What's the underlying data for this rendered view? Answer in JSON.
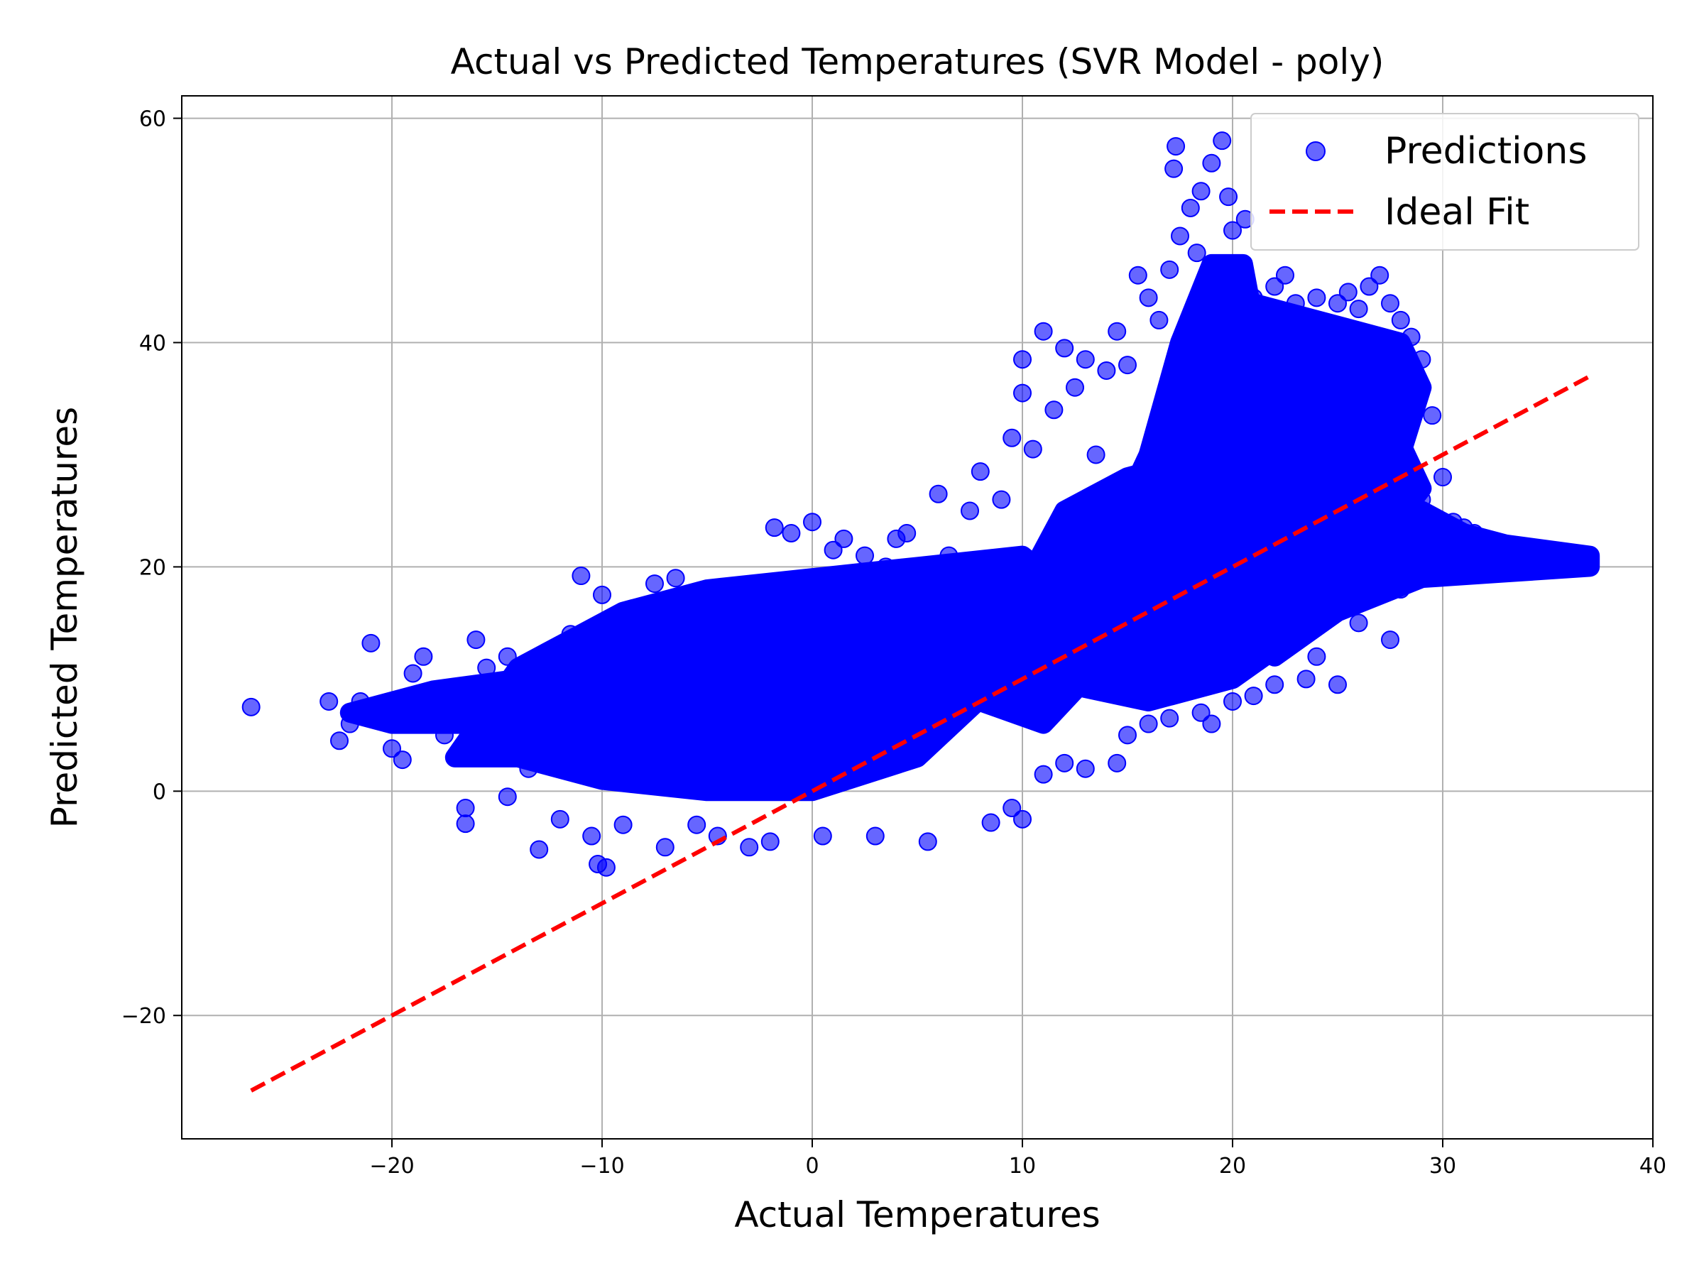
{
  "chart_data": {
    "type": "scatter",
    "title": "Actual vs Predicted Temperatures (SVR Model - poly)",
    "xlabel": "Actual Temperatures",
    "ylabel": "Predicted Temperatures",
    "xlim": [
      -30,
      40
    ],
    "ylim": [
      -31,
      62
    ],
    "xticks": [
      -20,
      -10,
      0,
      10,
      20,
      30,
      40
    ],
    "yticks": [
      -20,
      0,
      20,
      40,
      60
    ],
    "xtick_labels": [
      "−20",
      "−10",
      "0",
      "10",
      "20",
      "30",
      "40"
    ],
    "ytick_labels": [
      "−20",
      "0",
      "20",
      "40",
      "60"
    ],
    "grid": true,
    "legend_position": "top-right",
    "colors": {
      "predictions": "#0000ff",
      "ideal_fit": "#ff0000",
      "grid": "#b0b0b0"
    },
    "series": [
      {
        "name": "Predictions",
        "kind": "scatter",
        "alpha": 0.6,
        "points": [
          [
            -26.7,
            7.5
          ],
          [
            -23.0,
            8.0
          ],
          [
            -22.5,
            4.5
          ],
          [
            -22.0,
            6.0
          ],
          [
            -21.5,
            8.0
          ],
          [
            -21.0,
            13.2
          ],
          [
            -20.5,
            6.5
          ],
          [
            -20.0,
            3.8
          ],
          [
            -19.5,
            2.8
          ],
          [
            -19.0,
            10.5
          ],
          [
            -18.5,
            12.0
          ],
          [
            -18.0,
            7.0
          ],
          [
            -17.5,
            5.0
          ],
          [
            -16.5,
            -1.5
          ],
          [
            -16.5,
            -2.9
          ],
          [
            -16.0,
            13.5
          ],
          [
            -15.5,
            11.0
          ],
          [
            -15.0,
            9.0
          ],
          [
            -14.5,
            12.0
          ],
          [
            -14.0,
            6.5
          ],
          [
            -14.5,
            -0.5
          ],
          [
            -13.5,
            2.0
          ],
          [
            -13.0,
            -5.2
          ],
          [
            -12.5,
            10.0
          ],
          [
            -12.0,
            -2.5
          ],
          [
            -11.5,
            14.0
          ],
          [
            -11.0,
            19.2
          ],
          [
            -11.0,
            4.0
          ],
          [
            -10.5,
            -4.0
          ],
          [
            -10.2,
            -6.5
          ],
          [
            -9.8,
            -6.8
          ],
          [
            -10.0,
            17.5
          ],
          [
            -9.0,
            -3.0
          ],
          [
            -8.5,
            12.0
          ],
          [
            -8.0,
            16.0
          ],
          [
            -7.5,
            18.5
          ],
          [
            -7.0,
            -5.0
          ],
          [
            -6.5,
            19.0
          ],
          [
            -6.0,
            2.0
          ],
          [
            -5.5,
            -3.0
          ],
          [
            -5.0,
            15.0
          ],
          [
            -4.5,
            -4.0
          ],
          [
            -4.0,
            18.0
          ],
          [
            -3.5,
            8.0
          ],
          [
            -3.0,
            -5.0
          ],
          [
            -2.5,
            17.0
          ],
          [
            -2.0,
            -4.5
          ],
          [
            -1.8,
            23.5
          ],
          [
            -1.0,
            23.0
          ],
          [
            -0.5,
            16.0
          ],
          [
            0.0,
            24.0
          ],
          [
            0.5,
            -4.0
          ],
          [
            1.0,
            21.5
          ],
          [
            1.5,
            22.5
          ],
          [
            2.0,
            14.0
          ],
          [
            2.5,
            21.0
          ],
          [
            3.0,
            -4.0
          ],
          [
            3.5,
            20.0
          ],
          [
            4.0,
            22.5
          ],
          [
            4.5,
            23.0
          ],
          [
            5.0,
            18.0
          ],
          [
            5.5,
            -4.5
          ],
          [
            6.0,
            26.5
          ],
          [
            6.5,
            21.0
          ],
          [
            7.0,
            8.0
          ],
          [
            7.5,
            25.0
          ],
          [
            8.0,
            28.5
          ],
          [
            8.5,
            -2.8
          ],
          [
            9.0,
            26.0
          ],
          [
            9.5,
            31.5
          ],
          [
            10.0,
            35.5
          ],
          [
            10.0,
            38.5
          ],
          [
            10.5,
            30.5
          ],
          [
            11.0,
            41.0
          ],
          [
            11.5,
            34.0
          ],
          [
            12.0,
            39.5
          ],
          [
            12.5,
            36.0
          ],
          [
            13.0,
            38.5
          ],
          [
            13.5,
            30.0
          ],
          [
            14.0,
            37.5
          ],
          [
            14.5,
            41.0
          ],
          [
            15.0,
            38.0
          ],
          [
            15.5,
            46.0
          ],
          [
            16.0,
            44.0
          ],
          [
            16.5,
            42.0
          ],
          [
            17.0,
            46.5
          ],
          [
            17.2,
            55.5
          ],
          [
            17.3,
            57.5
          ],
          [
            17.5,
            49.5
          ],
          [
            18.0,
            52.0
          ],
          [
            18.3,
            48.0
          ],
          [
            18.5,
            53.5
          ],
          [
            19.0,
            56.0
          ],
          [
            19.5,
            58.0
          ],
          [
            19.8,
            53.0
          ],
          [
            20.0,
            50.0
          ],
          [
            20.3,
            47.0
          ],
          [
            20.6,
            51.0
          ],
          [
            21.0,
            44.0
          ],
          [
            21.5,
            43.0
          ],
          [
            22.0,
            45.0
          ],
          [
            22.5,
            46.0
          ],
          [
            23.0,
            43.5
          ],
          [
            23.5,
            42.0
          ],
          [
            24.0,
            44.0
          ],
          [
            24.5,
            41.0
          ],
          [
            25.0,
            43.5
          ],
          [
            25.5,
            44.5
          ],
          [
            26.0,
            43.0
          ],
          [
            26.5,
            45.0
          ],
          [
            27.0,
            46.0
          ],
          [
            27.5,
            43.5
          ],
          [
            28.0,
            42.0
          ],
          [
            28.5,
            40.5
          ],
          [
            29.0,
            38.5
          ],
          [
            29.5,
            33.5
          ],
          [
            30.0,
            28.0
          ],
          [
            30.5,
            24.0
          ],
          [
            31.0,
            23.5
          ],
          [
            31.5,
            23.0
          ],
          [
            32.0,
            21.5
          ],
          [
            32.5,
            22.0
          ],
          [
            33.0,
            21.0
          ],
          [
            33.5,
            21.5
          ],
          [
            34.0,
            20.5
          ],
          [
            34.5,
            21.0
          ],
          [
            35.0,
            20.5
          ],
          [
            35.5,
            20.5
          ],
          [
            36.0,
            20.5
          ],
          [
            36.5,
            20.5
          ],
          [
            37.0,
            20.8
          ],
          [
            21.0,
            8.5
          ],
          [
            22.0,
            9.5
          ],
          [
            23.5,
            10.0
          ],
          [
            25.0,
            9.5
          ],
          [
            26.0,
            15.0
          ],
          [
            27.5,
            13.5
          ],
          [
            18.5,
            7.0
          ],
          [
            17.0,
            6.5
          ],
          [
            16.0,
            6.0
          ],
          [
            15.0,
            5.0
          ],
          [
            14.5,
            2.5
          ],
          [
            13.0,
            2.0
          ],
          [
            12.0,
            2.5
          ],
          [
            11.0,
            1.5
          ],
          [
            10.0,
            -2.5
          ],
          [
            9.5,
            -1.5
          ],
          [
            19.0,
            6.0
          ],
          [
            20.0,
            8.0
          ],
          [
            24.0,
            12.0
          ],
          [
            28.0,
            18.0
          ],
          [
            29.0,
            26.0
          ]
        ]
      },
      {
        "name": "Ideal Fit",
        "kind": "line",
        "style": "dashed",
        "x": [
          -26.7,
          37.0
        ],
        "y": [
          -26.7,
          37.0
        ]
      }
    ],
    "dense_regions": [
      {
        "points": [
          [
            -17,
            3
          ],
          [
            -14,
            11
          ],
          [
            -11,
            14
          ],
          [
            -9,
            16
          ],
          [
            -5,
            18
          ],
          [
            0,
            19
          ],
          [
            5,
            20
          ],
          [
            10,
            21
          ],
          [
            12,
            18
          ],
          [
            9,
            10
          ],
          [
            5,
            3
          ],
          [
            0,
            0
          ],
          [
            -5,
            0
          ],
          [
            -10,
            1
          ],
          [
            -14,
            3
          ]
        ]
      },
      {
        "points": [
          [
            -22,
            7
          ],
          [
            -18,
            9
          ],
          [
            -14,
            10
          ],
          [
            -10,
            12
          ],
          [
            -8,
            11
          ],
          [
            -12,
            7
          ],
          [
            -16,
            6
          ],
          [
            -20,
            6
          ]
        ]
      },
      {
        "points": [
          [
            -9,
            4
          ],
          [
            -6,
            14
          ],
          [
            -2,
            17
          ],
          [
            4,
            19
          ],
          [
            8,
            20
          ],
          [
            9,
            14
          ],
          [
            6,
            6
          ],
          [
            1,
            1
          ],
          [
            -4,
            1
          ]
        ]
      },
      {
        "points": [
          [
            8,
            8
          ],
          [
            10,
            18
          ],
          [
            12,
            25
          ],
          [
            13,
            26
          ],
          [
            15,
            28
          ],
          [
            17,
            29
          ],
          [
            19,
            28
          ],
          [
            16,
            20
          ],
          [
            14,
            12
          ],
          [
            11,
            6
          ]
        ]
      },
      {
        "points": [
          [
            11,
            10
          ],
          [
            14,
            22
          ],
          [
            16,
            30
          ],
          [
            17,
            36
          ],
          [
            18,
            41
          ],
          [
            20,
            44
          ],
          [
            24,
            42
          ],
          [
            28,
            40
          ],
          [
            29,
            36
          ],
          [
            28,
            30
          ],
          [
            26,
            22
          ],
          [
            23,
            14
          ],
          [
            20,
            10
          ],
          [
            16,
            8
          ]
        ]
      },
      {
        "points": [
          [
            16,
            30
          ],
          [
            17.5,
            40
          ],
          [
            19,
            47
          ],
          [
            20.5,
            47
          ],
          [
            21,
            42
          ],
          [
            19,
            34
          ]
        ]
      },
      {
        "points": [
          [
            20,
            14
          ],
          [
            24,
            22
          ],
          [
            27,
            26
          ],
          [
            29,
            25
          ],
          [
            31,
            23
          ],
          [
            33,
            22
          ],
          [
            37,
            21
          ],
          [
            37,
            20
          ],
          [
            33,
            19.5
          ],
          [
            29,
            19
          ],
          [
            25,
            16
          ],
          [
            22,
            12
          ]
        ]
      },
      {
        "points": [
          [
            18,
            20
          ],
          [
            23,
            27
          ],
          [
            26,
            30
          ],
          [
            28,
            31
          ],
          [
            29,
            27
          ],
          [
            27,
            22
          ],
          [
            23,
            18
          ],
          [
            19,
            16
          ]
        ]
      },
      {
        "points": [
          [
            -3,
            8
          ],
          [
            2,
            14
          ],
          [
            7,
            17
          ],
          [
            10,
            16
          ],
          [
            12,
            14
          ],
          [
            8,
            9
          ],
          [
            4,
            6
          ],
          [
            0,
            5
          ]
        ]
      }
    ]
  }
}
